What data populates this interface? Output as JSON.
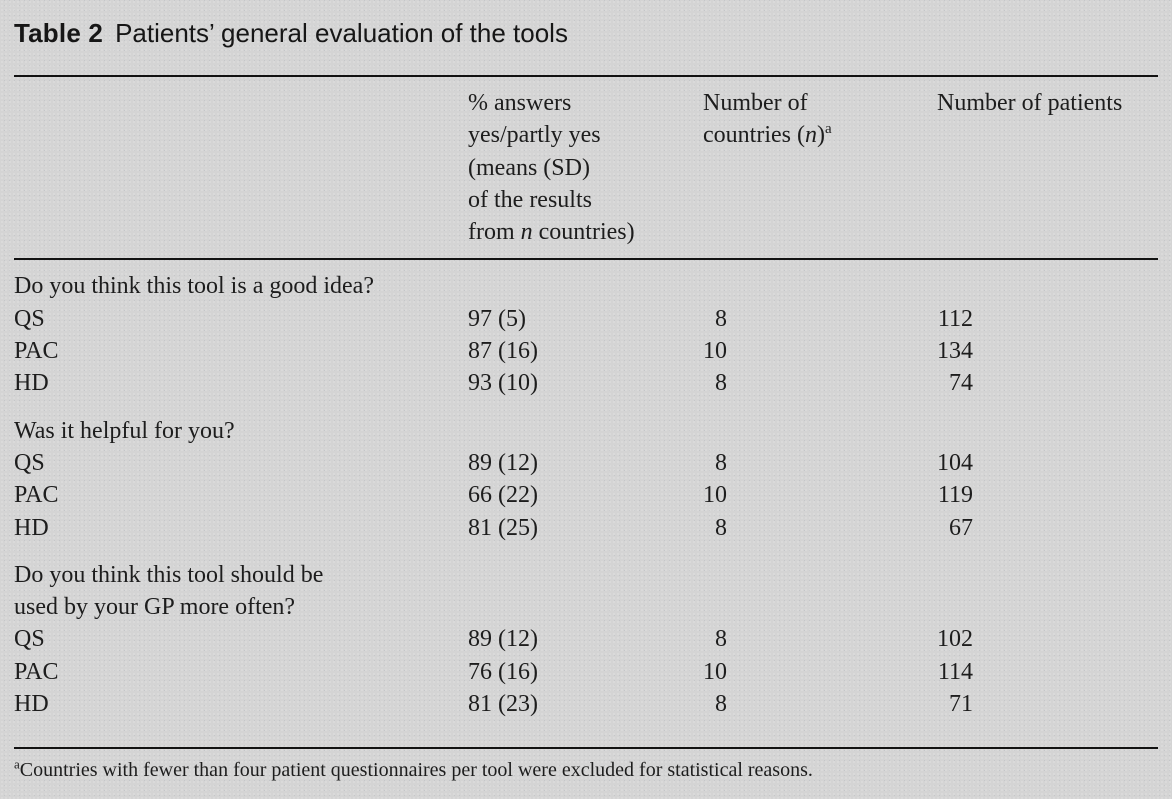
{
  "page": {
    "background_color": "#d4d4d4",
    "ink_color": "#1d1d1d",
    "rule_color": "#121212"
  },
  "title": {
    "label": "Table 2",
    "text": "Patients’ general evaluation of the tools"
  },
  "header": {
    "columns": [
      {
        "name": "row-label-column",
        "lines": []
      },
      {
        "name": "percent-answers-column",
        "lines": [
          [
            {
              "t": "% answers"
            }
          ],
          [
            {
              "t": "yes/partly yes"
            }
          ],
          [
            {
              "t": "(means (SD)"
            }
          ],
          [
            {
              "t": "of the results"
            }
          ],
          [
            {
              "t": "from "
            },
            {
              "t": "n",
              "i": true
            },
            {
              "t": " countries)"
            }
          ]
        ]
      },
      {
        "name": "number-of-countries-column",
        "lines": [
          [
            {
              "t": "Number of"
            }
          ],
          [
            {
              "t": "countries ("
            },
            {
              "t": "n",
              "i": true
            },
            {
              "t": ")"
            },
            {
              "t": "a",
              "sup": true
            }
          ]
        ]
      },
      {
        "name": "number-of-patients-column",
        "lines": [
          [
            {
              "t": "Number of patients"
            }
          ]
        ]
      }
    ]
  },
  "body": {
    "rows": [
      {
        "question": [
          "Do you think this tool is a good idea?"
        ]
      },
      {
        "tool": "QS",
        "pct": "97 (5)",
        "countries": "8",
        "patients": "112"
      },
      {
        "tool": "PAC",
        "pct": "87 (16)",
        "countries": "10",
        "patients": "134"
      },
      {
        "tool": "HD",
        "pct": "93 (10)",
        "countries": "8",
        "patients": "74"
      },
      {
        "question": [
          "Was it helpful for you?"
        ]
      },
      {
        "tool": "QS",
        "pct": "89 (12)",
        "countries": "8",
        "patients": "104"
      },
      {
        "tool": "PAC",
        "pct": "66 (22)",
        "countries": "10",
        "patients": "119"
      },
      {
        "tool": "HD",
        "pct": "81 (25)",
        "countries": "8",
        "patients": "67"
      },
      {
        "question": [
          "Do you think this tool should be",
          "used by your GP more often?"
        ]
      },
      {
        "tool": "QS",
        "pct": "89 (12)",
        "countries": "8",
        "patients": "102"
      },
      {
        "tool": "PAC",
        "pct": "76 (16)",
        "countries": "10",
        "patients": "114"
      },
      {
        "tool": "HD",
        "pct": "81 (23)",
        "countries": "8",
        "patients": "71"
      }
    ]
  },
  "footnote": {
    "marker": "a",
    "text": "Countries with fewer than four patient questionnaires per tool were excluded for statistical reasons."
  }
}
